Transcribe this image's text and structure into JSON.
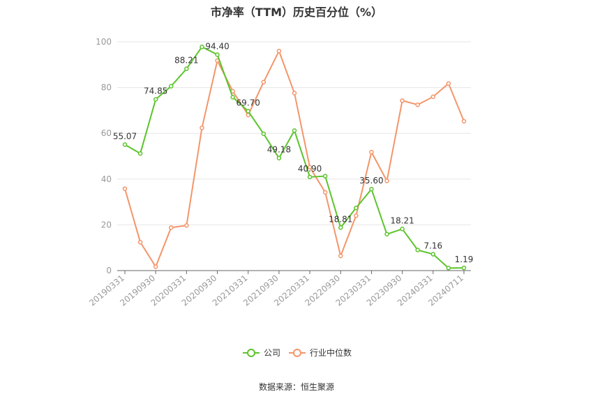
{
  "chart_data": {
    "type": "line",
    "title": "市净率（TTM）历史百分位（%）",
    "xlabel": "",
    "ylabel": "",
    "ylim": [
      0,
      100
    ],
    "yticks": [
      "0",
      "20",
      "40",
      "60",
      "80",
      "100"
    ],
    "grid": true,
    "legend_position": "bottom",
    "x": [
      "20190331",
      "20190630",
      "20190930",
      "20191231",
      "20200331",
      "20200630",
      "20200930",
      "20201231",
      "20210331",
      "20210630",
      "20210930",
      "20211231",
      "20220331",
      "20220630",
      "20220930",
      "20221231",
      "20230331",
      "20230630",
      "20230930",
      "20231231",
      "20240331",
      "20240630",
      "20240711"
    ],
    "xtick_labels": [
      "20190331",
      "20190930",
      "20200331",
      "20200930",
      "20210331",
      "20210930",
      "20220331",
      "20220930",
      "20230331",
      "20230930",
      "20240331",
      "20240711"
    ],
    "series": [
      {
        "name": "公司",
        "color": "#5cc42c",
        "values": [
          55.07,
          51.2,
          74.85,
          80.6,
          88.21,
          97.8,
          94.4,
          75.8,
          69.7,
          59.8,
          49.18,
          61.2,
          40.9,
          41.3,
          18.81,
          27.4,
          35.6,
          15.9,
          18.21,
          9.0,
          7.16,
          1.1,
          1.19
        ],
        "labels": {
          "0": "55.07",
          "2": "74.85",
          "4": "88.21",
          "6": "94.40",
          "8": "69.70",
          "10": "49.18",
          "12": "40.90",
          "14": "18.81",
          "16": "35.60",
          "18": "18.21",
          "20": "7.16",
          "22": "1.19"
        }
      },
      {
        "name": "行业中位数",
        "color": "#f4956a",
        "values": [
          35.8,
          12.4,
          1.7,
          18.8,
          19.7,
          62.4,
          91.8,
          78.4,
          68.0,
          82.4,
          96.0,
          77.6,
          45.2,
          34.2,
          6.4,
          24.0,
          51.8,
          39.2,
          74.3,
          72.5,
          76.0,
          81.8,
          65.3
        ]
      }
    ]
  },
  "source": "数据来源：恒生聚源"
}
